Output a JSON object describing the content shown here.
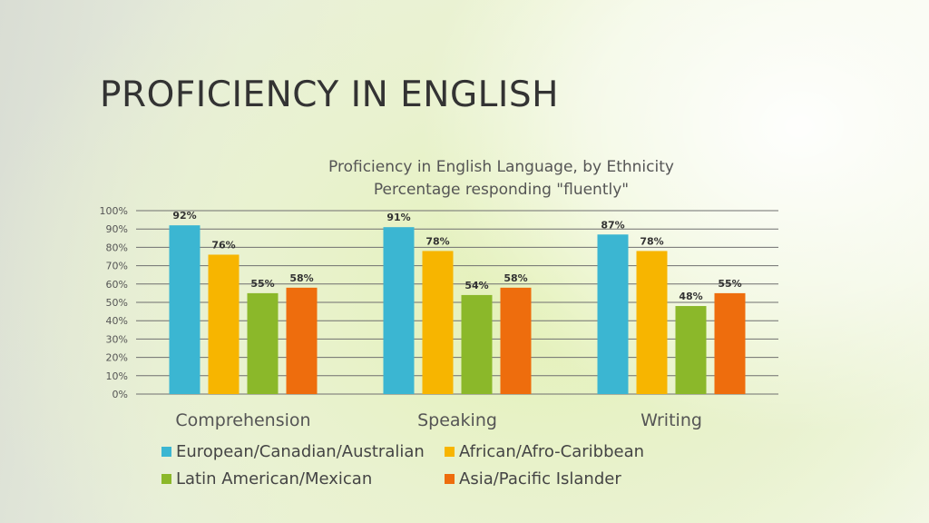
{
  "slide": {
    "title": "PROFICIENCY IN ENGLISH"
  },
  "chart_data": {
    "type": "bar",
    "title": "Proficiency in English Language, by Ethnicity",
    "subtitle": "Percentage responding \"fluently\"",
    "categories": [
      "Comprehension",
      "Speaking",
      "Writing"
    ],
    "ylim": [
      0,
      100
    ],
    "y_ticks": [
      "0%",
      "10%",
      "20%",
      "30%",
      "40%",
      "50%",
      "60%",
      "70%",
      "80%",
      "90%",
      "100%"
    ],
    "grid": true,
    "legend_position": "bottom",
    "series": [
      {
        "name": "European/Canadian/Australian",
        "color": "#3bb6d2",
        "values": [
          92,
          91,
          87
        ],
        "labels": [
          "92%",
          "91%",
          "87%"
        ]
      },
      {
        "name": "African/Afro-Caribbean",
        "color": "#f7b500",
        "values": [
          76,
          78,
          78
        ],
        "labels": [
          "76%",
          "78%",
          "78%"
        ]
      },
      {
        "name": "Latin American/Mexican",
        "color": "#8bb82a",
        "values": [
          55,
          54,
          48
        ],
        "labels": [
          "55%",
          "54%",
          "48%"
        ]
      },
      {
        "name": "Asia/Pacific Islander",
        "color": "#ee6d0d",
        "values": [
          58,
          58,
          55
        ],
        "labels": [
          "58%",
          "58%",
          "55%"
        ]
      }
    ]
  }
}
